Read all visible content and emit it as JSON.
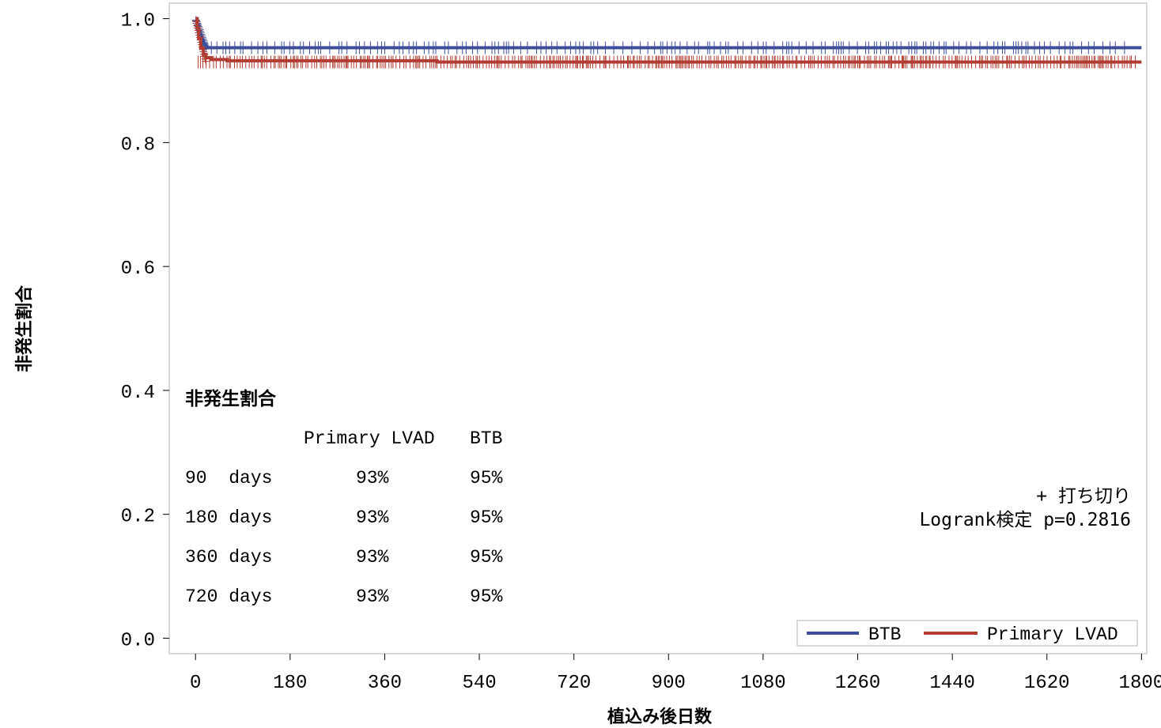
{
  "chart_data": {
    "type": "line",
    "subtype": "kaplan-meier",
    "title": "",
    "xlabel": "植込み後日数",
    "ylabel": "非発生割合",
    "xlim": [
      -50,
      1810
    ],
    "ylim": [
      -0.025,
      1.025
    ],
    "x_ticks": [
      "0",
      "180",
      "360",
      "540",
      "720",
      "900",
      "1080",
      "1260",
      "1440",
      "1620",
      "1800"
    ],
    "y_ticks": [
      "0.0",
      "0.2",
      "0.4",
      "0.6",
      "0.8",
      "1.0"
    ],
    "grid": false,
    "series": [
      {
        "name": "BTB",
        "color": "#3d4e9a",
        "x": [
          0,
          3,
          6,
          10,
          15,
          20,
          1800
        ],
        "y": [
          1.0,
          0.99,
          0.975,
          0.965,
          0.958,
          0.953,
          0.953
        ]
      },
      {
        "name": "Primary LVAD",
        "color": "#b13c32",
        "x": [
          0,
          3,
          6,
          10,
          15,
          20,
          30,
          60,
          460,
          1800
        ],
        "y": [
          1.0,
          0.985,
          0.968,
          0.952,
          0.942,
          0.937,
          0.934,
          0.932,
          0.93,
          0.93
        ]
      }
    ],
    "censor_marks": {
      "BTB": {
        "from": 30,
        "to": 1780,
        "y": 0.953
      },
      "Primary LVAD": {
        "from": 5,
        "to": 1790,
        "y": 0.93
      }
    },
    "legend": {
      "position": "bottom-right",
      "entries": [
        "BTB",
        "Primary LVAD"
      ]
    },
    "annotations": {
      "censor_label": "+ 打ち切り",
      "logrank": "Logrank検定 p=0.2816"
    },
    "inset_table": {
      "title": "非発生割合",
      "headers": [
        "",
        "Primary LVAD",
        "BTB"
      ],
      "rows": [
        {
          "label": "90  days",
          "primary": "93%",
          "btb": "95%"
        },
        {
          "label": "180 days",
          "primary": "93%",
          "btb": "95%"
        },
        {
          "label": "360 days",
          "primary": "93%",
          "btb": "95%"
        },
        {
          "label": "720 days",
          "primary": "93%",
          "btb": "95%"
        }
      ]
    }
  }
}
